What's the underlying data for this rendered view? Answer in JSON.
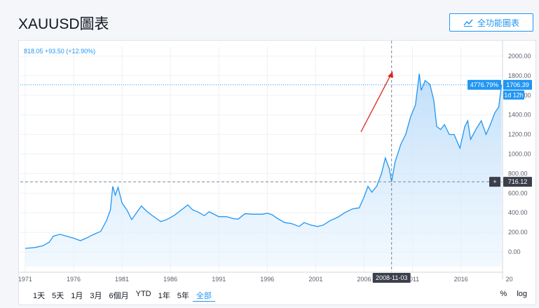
{
  "header": {
    "title": "XAUUSD圖表",
    "fullscreen_label": "全功能圖表",
    "fullscreen_icon": "line-chart-icon"
  },
  "legend": {
    "text": "818.05 +93.50 (+12.90%)"
  },
  "price_axis": {
    "labels": [
      "2000.00",
      "1800.00",
      "1600.00",
      "1400.00",
      "1200.00",
      "1000.00",
      "800.00",
      "600.00",
      "400.00",
      "200.00",
      "0.00"
    ]
  },
  "time_axis": {
    "labels": [
      "1971",
      "1976",
      "1981",
      "1986",
      "1991",
      "1996",
      "2001",
      "2006",
      "2011",
      "2016",
      "20"
    ]
  },
  "markers": {
    "last_percent": "4776.79%",
    "last_price": "1706.39",
    "countdown": "1d 12h",
    "crosshair_price": "716.12",
    "crosshair_date": "2008-11-03",
    "crosshair_plus": "+"
  },
  "range_buttons": [
    {
      "label": "1天"
    },
    {
      "label": "5天"
    },
    {
      "label": "1月"
    },
    {
      "label": "3月"
    },
    {
      "label": "6個月"
    },
    {
      "label": "YTD"
    },
    {
      "label": "1年"
    },
    {
      "label": "5年"
    },
    {
      "label": "全部",
      "active": true
    }
  ],
  "scale_options": {
    "percent": "%",
    "log": "log"
  },
  "colors": {
    "accent": "#2196f3",
    "line": "#2196f3",
    "fill": "#cfe5fb",
    "arrow": "#e0231a",
    "axis_bg": "#ffffff"
  },
  "chart_data": {
    "type": "area",
    "symbol": "XAUUSD",
    "y_range": [
      -150,
      2100
    ],
    "x_range": [
      1970.5,
      2020.3
    ],
    "points": [
      [
        1971.0,
        36
      ],
      [
        1972.0,
        45
      ],
      [
        1972.8,
        62
      ],
      [
        1973.5,
        100
      ],
      [
        1973.9,
        160
      ],
      [
        1974.6,
        180
      ],
      [
        1975.3,
        160
      ],
      [
        1976.0,
        140
      ],
      [
        1976.7,
        115
      ],
      [
        1977.3,
        140
      ],
      [
        1978.0,
        175
      ],
      [
        1978.8,
        210
      ],
      [
        1979.4,
        320
      ],
      [
        1979.8,
        430
      ],
      [
        1980.05,
        670
      ],
      [
        1980.3,
        580
      ],
      [
        1980.6,
        660
      ],
      [
        1981.0,
        500
      ],
      [
        1981.5,
        430
      ],
      [
        1982.0,
        330
      ],
      [
        1982.5,
        400
      ],
      [
        1983.0,
        470
      ],
      [
        1983.5,
        420
      ],
      [
        1984.0,
        380
      ],
      [
        1984.5,
        345
      ],
      [
        1985.0,
        310
      ],
      [
        1985.5,
        325
      ],
      [
        1986.0,
        350
      ],
      [
        1986.5,
        380
      ],
      [
        1987.0,
        420
      ],
      [
        1987.8,
        480
      ],
      [
        1988.3,
        430
      ],
      [
        1988.8,
        410
      ],
      [
        1989.5,
        370
      ],
      [
        1990.0,
        410
      ],
      [
        1990.6,
        380
      ],
      [
        1991.0,
        360
      ],
      [
        1991.8,
        360
      ],
      [
        1992.5,
        340
      ],
      [
        1993.0,
        335
      ],
      [
        1993.7,
        390
      ],
      [
        1994.5,
        385
      ],
      [
        1995.5,
        385
      ],
      [
        1996.0,
        395
      ],
      [
        1996.5,
        380
      ],
      [
        1997.0,
        345
      ],
      [
        1997.8,
        300
      ],
      [
        1998.5,
        290
      ],
      [
        1999.3,
        260
      ],
      [
        1999.8,
        300
      ],
      [
        2000.5,
        275
      ],
      [
        2001.2,
        260
      ],
      [
        2001.8,
        275
      ],
      [
        2002.5,
        320
      ],
      [
        2003.3,
        355
      ],
      [
        2004.0,
        400
      ],
      [
        2004.8,
        440
      ],
      [
        2005.5,
        450
      ],
      [
        2006.0,
        560
      ],
      [
        2006.4,
        670
      ],
      [
        2006.8,
        610
      ],
      [
        2007.3,
        670
      ],
      [
        2007.8,
        800
      ],
      [
        2008.2,
        960
      ],
      [
        2008.6,
        850
      ],
      [
        2008.84,
        716
      ],
      [
        2009.2,
        920
      ],
      [
        2009.8,
        1100
      ],
      [
        2010.3,
        1200
      ],
      [
        2010.8,
        1380
      ],
      [
        2011.3,
        1500
      ],
      [
        2011.7,
        1820
      ],
      [
        2011.9,
        1650
      ],
      [
        2012.3,
        1750
      ],
      [
        2012.8,
        1710
      ],
      [
        2013.2,
        1550
      ],
      [
        2013.5,
        1280
      ],
      [
        2013.9,
        1250
      ],
      [
        2014.3,
        1300
      ],
      [
        2014.8,
        1200
      ],
      [
        2015.3,
        1200
      ],
      [
        2015.9,
        1060
      ],
      [
        2016.4,
        1280
      ],
      [
        2016.7,
        1340
      ],
      [
        2017.0,
        1150
      ],
      [
        2017.6,
        1260
      ],
      [
        2018.1,
        1340
      ],
      [
        2018.6,
        1200
      ],
      [
        2019.0,
        1290
      ],
      [
        2019.5,
        1420
      ],
      [
        2019.9,
        1480
      ],
      [
        2020.2,
        1706
      ]
    ]
  }
}
